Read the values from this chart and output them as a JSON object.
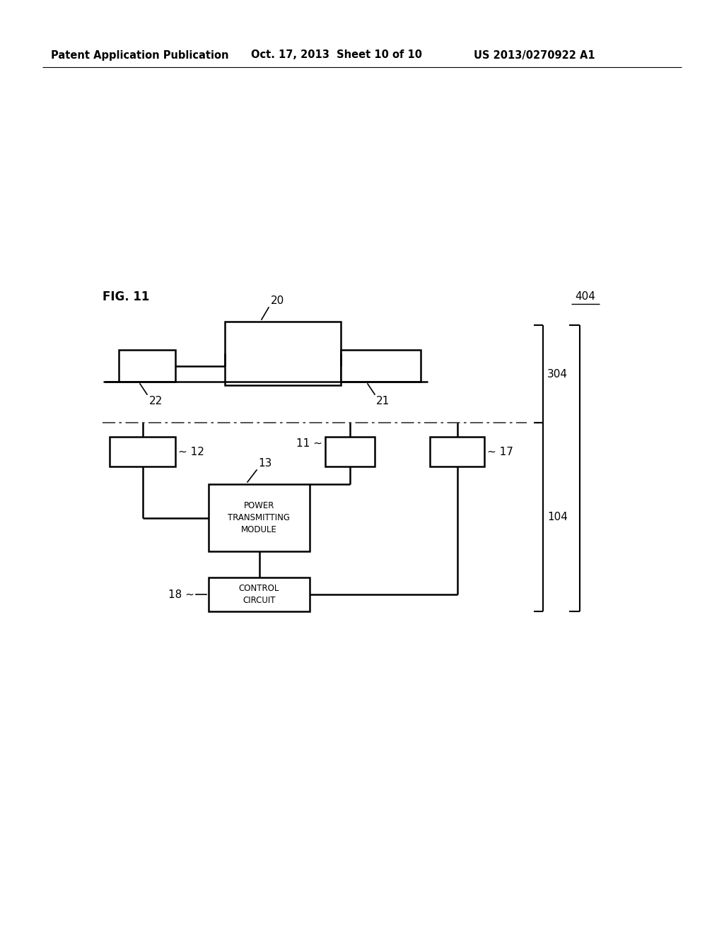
{
  "bg_color": "#ffffff",
  "header_text": "Patent Application Publication",
  "header_date": "Oct. 17, 2013  Sheet 10 of 10",
  "header_patent": "US 2013/0270922 A1",
  "fig_label": "FIG. 11",
  "label_404": "404",
  "label_304": "304",
  "label_104": "104",
  "box_20_label": "20",
  "box_21_label": "21",
  "box_22_label": "22",
  "box_12_label": "12",
  "box_11_label": "11",
  "box_17_label": "17",
  "box_13_label": "13",
  "box_13_text": "POWER\nTRANSMITTING\nMODULE",
  "box_18_label": "18",
  "box_18_text": "CONTROL\nCIRCUIT",
  "line_color": "#000000",
  "text_color": "#000000"
}
